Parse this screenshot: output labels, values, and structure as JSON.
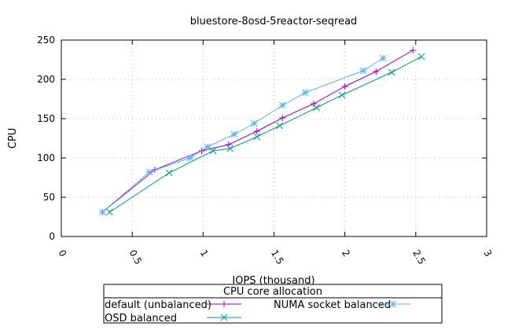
{
  "chart_data": {
    "type": "line",
    "title": "bluestore-8osd-5reactor-seqread",
    "xlabel": "IOPS (thousand)",
    "ylabel": "CPU",
    "xlim": [
      0,
      3
    ],
    "ylim": [
      0,
      250
    ],
    "xticks": [
      "0",
      "0.5",
      "1",
      "1.5",
      "2",
      "2.5",
      "3"
    ],
    "xtick_values": [
      0,
      0.5,
      1,
      1.5,
      2,
      2.5,
      3
    ],
    "yticks": [
      "0",
      "50",
      "100",
      "150",
      "200",
      "250"
    ],
    "ytick_values": [
      0,
      50,
      100,
      150,
      200,
      250
    ],
    "grid": true,
    "legend": {
      "title": "CPU core allocation",
      "placement": "bottom-center"
    },
    "series": [
      {
        "name": "default (unbalanced)",
        "color": "#9400d3",
        "marker": "plus",
        "x": [
          0.29,
          0.66,
          0.99,
          1.18,
          1.38,
          1.56,
          1.78,
          2.0,
          2.22,
          2.48
        ],
        "y": [
          31,
          85,
          109,
          117,
          134,
          151,
          169,
          191,
          210,
          237
        ]
      },
      {
        "name": "NUMA socket balanced",
        "color": "#56b4e9",
        "marker": "star",
        "x": [
          0.29,
          0.62,
          0.91,
          1.03,
          1.22,
          1.36,
          1.56,
          1.72,
          2.13,
          2.27
        ],
        "y": [
          31,
          82,
          100,
          114,
          130,
          144,
          167,
          183,
          211,
          227
        ]
      },
      {
        "name": "OSD balanced",
        "color": "#009e73",
        "marker": "cross",
        "x": [
          0.34,
          0.76,
          1.07,
          1.19,
          1.38,
          1.54,
          1.8,
          1.98,
          2.33,
          2.54
        ],
        "y": [
          31,
          81,
          109,
          112,
          127,
          141,
          164,
          180,
          209,
          229
        ]
      }
    ]
  }
}
